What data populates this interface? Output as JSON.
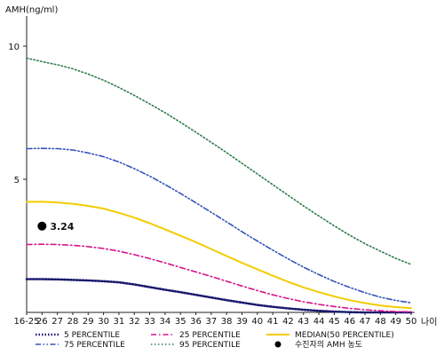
{
  "chart_data": {
    "type": "line",
    "ylabel": "AMH(ng/ml)",
    "xlabel": "나이",
    "categories": [
      "16-25",
      "26",
      "27",
      "28",
      "29",
      "30",
      "31",
      "32",
      "33",
      "34",
      "35",
      "36",
      "37",
      "38",
      "39",
      "40",
      "41",
      "42",
      "43",
      "44",
      "45",
      "46",
      "47",
      "48",
      "49",
      "50"
    ],
    "ylim": [
      0,
      11
    ],
    "yticks": [
      5,
      10
    ],
    "grid": false,
    "legend_position": "bottom",
    "series": [
      {
        "name": "5 PERCENTILE",
        "color": "#1a1a6e",
        "style": "dotted-thick",
        "values": [
          1.25,
          1.25,
          1.24,
          1.22,
          1.2,
          1.17,
          1.13,
          1.05,
          0.95,
          0.85,
          0.76,
          0.66,
          0.56,
          0.46,
          0.37,
          0.28,
          0.21,
          0.15,
          0.1,
          0.06,
          0.03,
          0.01,
          0.0,
          0.0,
          0.0,
          0.0
        ]
      },
      {
        "name": "25 PERCENTILE",
        "color": "#d6138a",
        "style": "dashdot",
        "values": [
          2.55,
          2.56,
          2.55,
          2.52,
          2.47,
          2.4,
          2.3,
          2.17,
          2.02,
          1.86,
          1.69,
          1.52,
          1.35,
          1.17,
          0.99,
          0.82,
          0.66,
          0.52,
          0.4,
          0.3,
          0.22,
          0.15,
          0.1,
          0.06,
          0.03,
          0.02
        ]
      },
      {
        "name": "MEDIAN(50 PERCENTILE)",
        "color": "#f2cc00",
        "style": "solid",
        "values": [
          4.15,
          4.16,
          4.13,
          4.08,
          4.0,
          3.9,
          3.74,
          3.56,
          3.35,
          3.12,
          2.88,
          2.64,
          2.38,
          2.12,
          1.86,
          1.62,
          1.38,
          1.15,
          0.94,
          0.76,
          0.6,
          0.46,
          0.35,
          0.26,
          0.2,
          0.16
        ]
      },
      {
        "name": "75 PERCENTILE",
        "color": "#3355bb",
        "style": "dashdotdot",
        "values": [
          6.15,
          6.16,
          6.15,
          6.1,
          5.99,
          5.85,
          5.65,
          5.4,
          5.12,
          4.8,
          4.47,
          4.12,
          3.76,
          3.4,
          3.03,
          2.68,
          2.34,
          2.01,
          1.7,
          1.42,
          1.16,
          0.94,
          0.74,
          0.57,
          0.45,
          0.36
        ]
      },
      {
        "name": "95 PERCENTILE",
        "color": "#2e7d4a",
        "style": "dotted",
        "values": [
          9.55,
          9.42,
          9.3,
          9.15,
          8.95,
          8.72,
          8.45,
          8.15,
          7.83,
          7.5,
          7.14,
          6.77,
          6.39,
          6.0,
          5.6,
          5.2,
          4.8,
          4.4,
          4.0,
          3.62,
          3.25,
          2.9,
          2.58,
          2.3,
          2.03,
          1.8
        ]
      }
    ],
    "patient": {
      "name": "수진자의 AMH 농도",
      "x": "26",
      "y": 3.24,
      "label": "3.24",
      "color": "#000000"
    }
  }
}
